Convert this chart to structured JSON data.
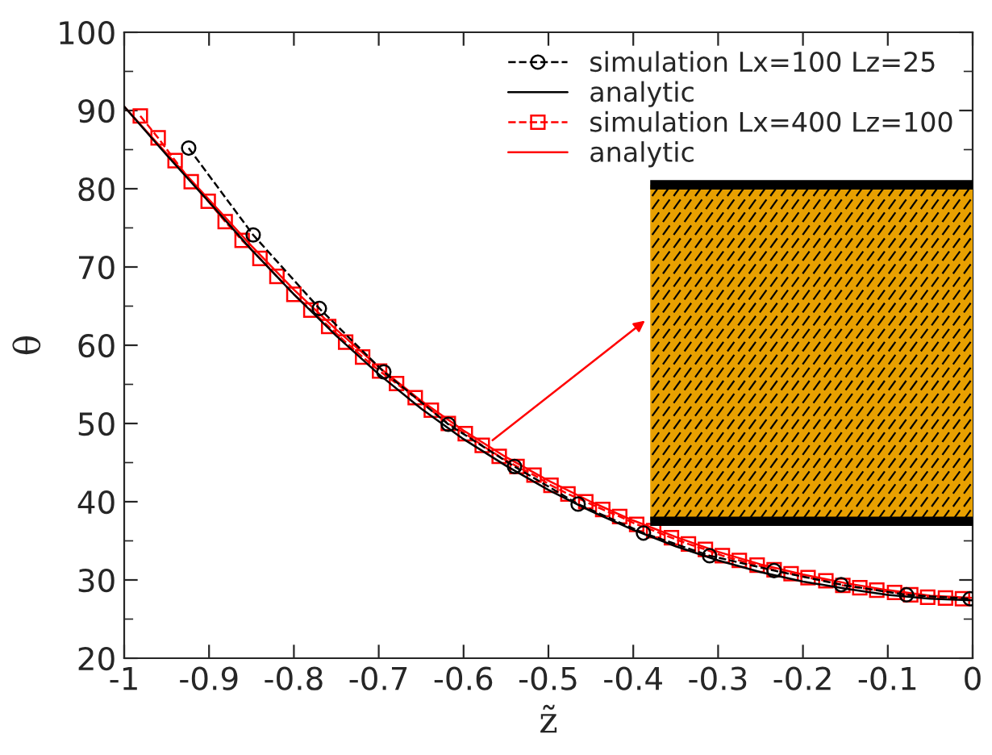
{
  "chart_data": {
    "type": "line",
    "xlabel": "z̃",
    "ylabel": "θ",
    "xlim": [
      -1,
      0
    ],
    "ylim": [
      20,
      100
    ],
    "xticks": [
      -1,
      -0.9,
      -0.8,
      -0.7,
      -0.6,
      -0.5,
      -0.4,
      -0.3,
      -0.2,
      -0.1,
      0
    ],
    "yticks": [
      20,
      30,
      40,
      50,
      60,
      70,
      80,
      90,
      100
    ],
    "grid": false,
    "legend": "top right",
    "series": [
      {
        "name": "simulation Lx=100 Lz=25",
        "color": "#000000",
        "marker": "circle",
        "line_style": "dashed",
        "x": [
          -0.924,
          -0.848,
          -0.77,
          -0.694,
          -0.618,
          -0.54,
          -0.465,
          -0.388,
          -0.31,
          -0.234,
          -0.155,
          -0.078,
          -0.003
        ],
        "values": [
          85.2,
          74.1,
          64.7,
          56.6,
          49.9,
          44.5,
          39.7,
          36.0,
          33.1,
          31.2,
          29.4,
          28.1,
          27.6
        ]
      },
      {
        "name": "analytic",
        "color": "#000000",
        "marker": "none",
        "line_style": "solid",
        "x": [
          -1,
          -0.95,
          -0.9,
          -0.85,
          -0.8,
          -0.75,
          -0.7,
          -0.65,
          -0.6,
          -0.55,
          -0.5,
          -0.45,
          -0.4,
          -0.35,
          -0.3,
          -0.25,
          -0.2,
          -0.15,
          -0.1,
          -0.05,
          0
        ],
        "values": [
          90.5,
          84.3,
          78.3,
          72.2,
          66.5,
          61.2,
          56.3,
          51.9,
          48.0,
          44.6,
          41.5,
          38.8,
          36.4,
          34.3,
          32.5,
          31.0,
          29.8,
          28.9,
          28.1,
          27.6,
          27.4
        ]
      },
      {
        "name": "simulation Lx=400 Lz=100",
        "color": "#ff0000",
        "marker": "square",
        "line_style": "dashed",
        "x": [
          -0.981,
          -0.96,
          -0.94,
          -0.921,
          -0.901,
          -0.881,
          -0.861,
          -0.84,
          -0.82,
          -0.8,
          -0.78,
          -0.759,
          -0.739,
          -0.719,
          -0.699,
          -0.679,
          -0.657,
          -0.638,
          -0.618,
          -0.598,
          -0.578,
          -0.558,
          -0.537,
          -0.517,
          -0.497,
          -0.477,
          -0.456,
          -0.436,
          -0.416,
          -0.396,
          -0.376,
          -0.355,
          -0.335,
          -0.315,
          -0.295,
          -0.275,
          -0.254,
          -0.234,
          -0.214,
          -0.194,
          -0.173,
          -0.153,
          -0.133,
          -0.113,
          -0.092,
          -0.073,
          -0.053,
          -0.032,
          -0.012
        ],
        "values": [
          89.3,
          86.5,
          83.6,
          80.9,
          78.4,
          75.8,
          73.4,
          71.1,
          68.8,
          66.5,
          64.5,
          62.4,
          60.4,
          58.5,
          56.7,
          55.1,
          53.3,
          51.7,
          50.0,
          48.7,
          47.2,
          45.8,
          44.5,
          43.4,
          42.1,
          41.0,
          40.0,
          39.0,
          38.1,
          37.1,
          36.3,
          35.4,
          34.6,
          33.9,
          33.1,
          32.5,
          31.9,
          31.3,
          30.8,
          30.3,
          29.9,
          29.3,
          29.0,
          28.7,
          28.4,
          28.1,
          27.8,
          27.7,
          27.6
        ]
      },
      {
        "name": "analytic",
        "color": "#ff0000",
        "marker": "none",
        "line_style": "solid",
        "x": [
          -1,
          -0.95,
          -0.9,
          -0.85,
          -0.8,
          -0.75,
          -0.7,
          -0.65,
          -0.6,
          -0.55,
          -0.5,
          -0.45,
          -0.4,
          -0.35,
          -0.3,
          -0.25,
          -0.2,
          -0.15,
          -0.1,
          -0.05,
          0
        ],
        "values": [
          90.5,
          84.5,
          78.6,
          72.7,
          67.1,
          62.0,
          57.2,
          52.9,
          49.1,
          45.7,
          42.7,
          40.0,
          37.6,
          35.5,
          33.6,
          32.0,
          30.7,
          29.6,
          28.7,
          28.0,
          27.7
        ]
      }
    ]
  }
}
